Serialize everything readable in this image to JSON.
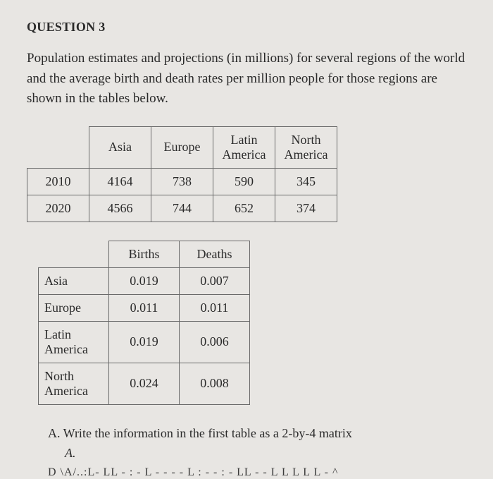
{
  "heading": "QUESTION 3",
  "body_text": "Population estimates and projections (in millions) for several regions of the world and the average birth and death rates per million people for those regions are shown in the tables below.",
  "table1": {
    "columns": [
      "Asia",
      "Europe",
      "Latin America",
      "North America"
    ],
    "row_labels": [
      "2010",
      "2020"
    ],
    "rows": [
      [
        "4164",
        "738",
        "590",
        "345"
      ],
      [
        "4566",
        "744",
        "652",
        "374"
      ]
    ]
  },
  "table2": {
    "columns": [
      "Births",
      "Deaths"
    ],
    "row_labels": [
      "Asia",
      "Europe",
      "Latin America",
      "North America"
    ],
    "rows": [
      [
        "0.019",
        "0.007"
      ],
      [
        "0.011",
        "0.011"
      ],
      [
        "0.019",
        "0.006"
      ],
      [
        "0.024",
        "0.008"
      ]
    ]
  },
  "part_a": {
    "text": "A. Write the information in the first table as a 2-by-4 matrix",
    "letter": "A."
  },
  "truncated_line": "D   \\A/..:L-   LL -   : - L -  -  - - L :  - -   : -   LL  -           -  L   L  L            L     L  -      ^"
}
